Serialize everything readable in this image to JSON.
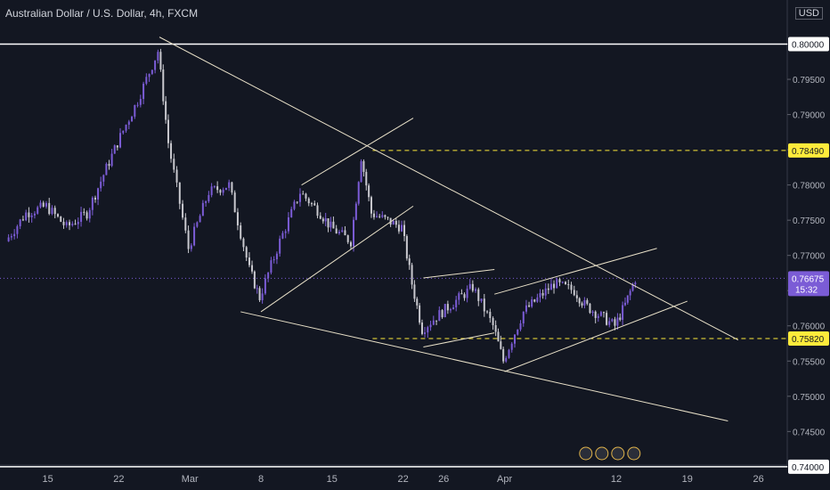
{
  "header": {
    "title": "Australian Dollar / U.S. Dollar, 4h, FXCM"
  },
  "axis": {
    "currency": "USD"
  },
  "colors": {
    "background": "#131722",
    "candle": "#c9c9cf",
    "candle_alt": "#7b5cd6",
    "trendline": "#e8e0c8",
    "level_line": "#ffffff",
    "dashed_level": "#ffeb3b",
    "price_tag": "#7b5cd6"
  },
  "chart_data": {
    "type": "candlestick",
    "title": "Australian Dollar / U.S. Dollar, 4h, FXCM",
    "ylim": [
      0.7415,
      0.805
    ],
    "price_labels": [
      "0.80000",
      "0.79500",
      "0.79000",
      "0.78500",
      "0.78000",
      "0.77500",
      "0.77000",
      "0.76500",
      "0.76000",
      "0.75500",
      "0.75000",
      "0.74500",
      "0.74000"
    ],
    "tick_labels_x": [
      "15",
      "22",
      "Mar",
      "8",
      "15",
      "22",
      "26",
      "Apr",
      "12",
      "19",
      "26"
    ],
    "current_price": {
      "label": "0.76675",
      "countdown": "15:32"
    },
    "horizontal_levels": [
      {
        "value": 0.8,
        "label": "0.80000",
        "style": "solid"
      },
      {
        "value": 0.74,
        "label": "0.74000",
        "style": "solid"
      },
      {
        "value": 0.7849,
        "label": "0.78490",
        "style": "dashed"
      },
      {
        "value": 0.7582,
        "label": "0.75820",
        "style": "dashed"
      }
    ],
    "trendlines": [
      {
        "from": [
          "Feb 26",
          0.801
        ],
        "to": [
          "Apr 24",
          0.758
        ]
      },
      {
        "from": [
          "Mar 6",
          0.762
        ],
        "to": [
          "Apr 23",
          0.7465
        ]
      },
      {
        "from": [
          "Mar 12",
          0.78
        ],
        "to": [
          "Mar 23",
          0.7895
        ]
      },
      {
        "from": [
          "Mar 8",
          0.762
        ],
        "to": [
          "Mar 23",
          0.777
        ]
      },
      {
        "from": [
          "Mar 24",
          0.7668
        ],
        "to": [
          "Mar 31",
          0.768
        ]
      },
      {
        "from": [
          "Mar 24",
          0.757
        ],
        "to": [
          "Mar 31",
          0.759
        ]
      },
      {
        "from": [
          "Mar 31",
          0.7645
        ],
        "to": [
          "Apr 16",
          0.771
        ]
      },
      {
        "from": [
          "Apr 1",
          0.7535
        ],
        "to": [
          "Apr 19",
          0.7635
        ]
      }
    ],
    "series": [
      {
        "x": [
          "Feb 11",
          "Feb 13",
          "Feb 15",
          "Feb 17",
          "Feb 19",
          "Feb 22",
          "Feb 24",
          "Feb 26",
          "Feb 27",
          "Mar 1",
          "Mar 3",
          "Mar 5",
          "Mar 7",
          "Mar 8",
          "Mar 10",
          "Mar 12",
          "Mar 14",
          "Mar 15",
          "Mar 17",
          "Mar 18",
          "Mar 19",
          "Mar 22",
          "Mar 23",
          "Mar 24",
          "Mar 26",
          "Mar 29",
          "Mar 31",
          "Apr 1",
          "Apr 3",
          "Apr 6",
          "Apr 8",
          "Apr 9",
          "Apr 12",
          "Apr 13",
          "Apr 14"
        ],
        "close": [
          0.772,
          0.776,
          0.777,
          0.774,
          0.776,
          0.786,
          0.792,
          0.799,
          0.786,
          0.771,
          0.779,
          0.78,
          0.768,
          0.764,
          0.772,
          0.779,
          0.776,
          0.774,
          0.772,
          0.784,
          0.776,
          0.774,
          0.766,
          0.7595,
          0.762,
          0.7655,
          0.76,
          0.755,
          0.762,
          0.766,
          0.765,
          0.763,
          0.76,
          0.763,
          0.7667
        ]
      }
    ]
  },
  "icons": [
    {
      "name": "events-flag-icon"
    }
  ]
}
